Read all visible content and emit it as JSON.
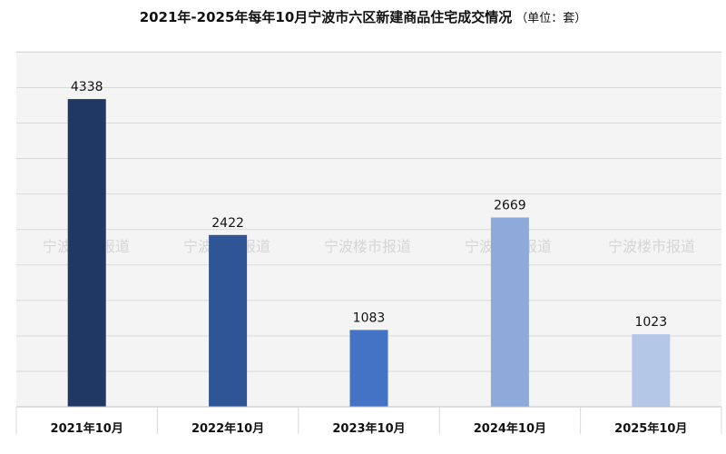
{
  "chart_data": {
    "type": "bar",
    "title": "2021年-2025年每年10月宁波市六区新建商品住宅成交情况",
    "unit_note": "（单位：套）",
    "categories": [
      "2021年10月",
      "2022年10月",
      "2023年10月",
      "2024年10月",
      "2025年10月"
    ],
    "values": [
      4338,
      2422,
      1083,
      2669,
      1023
    ],
    "colors": [
      "#1f3864",
      "#2f5597",
      "#4472c4",
      "#8eaadb",
      "#b4c7e7"
    ],
    "ylim": [
      0,
      5000
    ],
    "grid": true,
    "watermark": "宁波楼市报道"
  }
}
